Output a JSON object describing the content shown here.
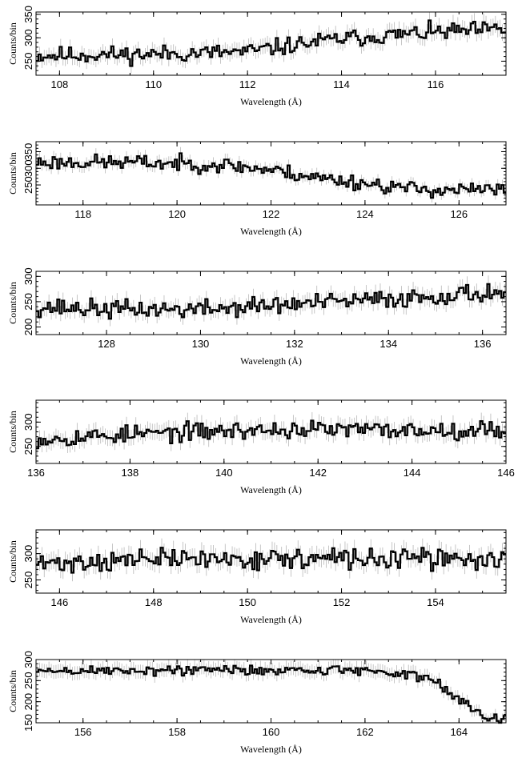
{
  "chart_data": [
    {
      "type": "line",
      "xlabel": "Wavelength (Å)",
      "ylabel": "Counts/bin",
      "xlim": [
        107.5,
        117.5
      ],
      "ylim": [
        220,
        355
      ],
      "xticks": [
        "108",
        "110",
        "112",
        "114",
        "116"
      ],
      "yticks": [
        "250",
        "300",
        "350"
      ],
      "trend": [
        [
          107.5,
          262
        ],
        [
          110,
          265
        ],
        [
          112,
          270
        ],
        [
          113,
          285
        ],
        [
          114,
          298
        ],
        [
          115,
          305
        ],
        [
          116,
          312
        ],
        [
          117.5,
          318
        ]
      ],
      "noise": 16,
      "seed": 11
    },
    {
      "type": "line",
      "xlabel": "Wavelength (Å)",
      "ylabel": "Counts/bin",
      "xlim": [
        117,
        127
      ],
      "ylim": [
        190,
        380
      ],
      "xticks": [
        "118",
        "120",
        "122",
        "124",
        "126"
      ],
      "yticks": [
        "250",
        "300",
        "350"
      ],
      "trend": [
        [
          117,
          318
        ],
        [
          119,
          318
        ],
        [
          121,
          310
        ],
        [
          122,
          295
        ],
        [
          123,
          272
        ],
        [
          124,
          255
        ],
        [
          125,
          238
        ],
        [
          126,
          235
        ],
        [
          127,
          235
        ]
      ],
      "noise": 20,
      "seed": 23
    },
    {
      "type": "line",
      "xlabel": "Wavelength (Å)",
      "ylabel": "Counts/bin",
      "xlim": [
        126.5,
        136.5
      ],
      "ylim": [
        185,
        310
      ],
      "xticks": [
        "128",
        "130",
        "132",
        "134",
        "136"
      ],
      "yticks": [
        "200",
        "250",
        "300"
      ],
      "trend": [
        [
          126.5,
          240
        ],
        [
          128,
          235
        ],
        [
          130,
          235
        ],
        [
          132,
          245
        ],
        [
          134,
          255
        ],
        [
          136.5,
          270
        ]
      ],
      "noise": 16,
      "seed": 37
    },
    {
      "type": "line",
      "xlabel": "Wavelength (Å)",
      "ylabel": "Counts/bin",
      "xlim": [
        136,
        146
      ],
      "ylim": [
        215,
        345
      ],
      "xticks": [
        "136",
        "138",
        "140",
        "142",
        "144",
        "146"
      ],
      "yticks": [
        "250",
        "300"
      ],
      "trend": [
        [
          136,
          265
        ],
        [
          138,
          275
        ],
        [
          140,
          282
        ],
        [
          142,
          285
        ],
        [
          144,
          283
        ],
        [
          146,
          285
        ]
      ],
      "noise": 16,
      "seed": 53
    },
    {
      "type": "line",
      "xlabel": "Wavelength (Å)",
      "ylabel": "Counts/bin",
      "xlim": [
        145.5,
        155.5
      ],
      "ylim": [
        225,
        345
      ],
      "xticks": [
        "146",
        "148",
        "150",
        "152",
        "154"
      ],
      "yticks": [
        "250",
        "300"
      ],
      "trend": [
        [
          145.5,
          280
        ],
        [
          148,
          290
        ],
        [
          150,
          290
        ],
        [
          152,
          290
        ],
        [
          154,
          290
        ],
        [
          155.5,
          288
        ]
      ],
      "noise": 17,
      "seed": 71
    },
    {
      "type": "line",
      "xlabel": "Wavelength (Å)",
      "ylabel": "Counts/bin",
      "xlim": [
        155,
        165
      ],
      "ylim": [
        150,
        300
      ],
      "xticks": [
        "156",
        "158",
        "160",
        "162",
        "164"
      ],
      "yticks": [
        "150",
        "200",
        "250",
        "300"
      ],
      "trend": [
        [
          155,
          272
        ],
        [
          158,
          275
        ],
        [
          160,
          275
        ],
        [
          162,
          275
        ],
        [
          163,
          265
        ],
        [
          163.5,
          245
        ],
        [
          164,
          205
        ],
        [
          164.5,
          170
        ],
        [
          165,
          160
        ]
      ],
      "noise": 11,
      "seed": 89
    }
  ]
}
